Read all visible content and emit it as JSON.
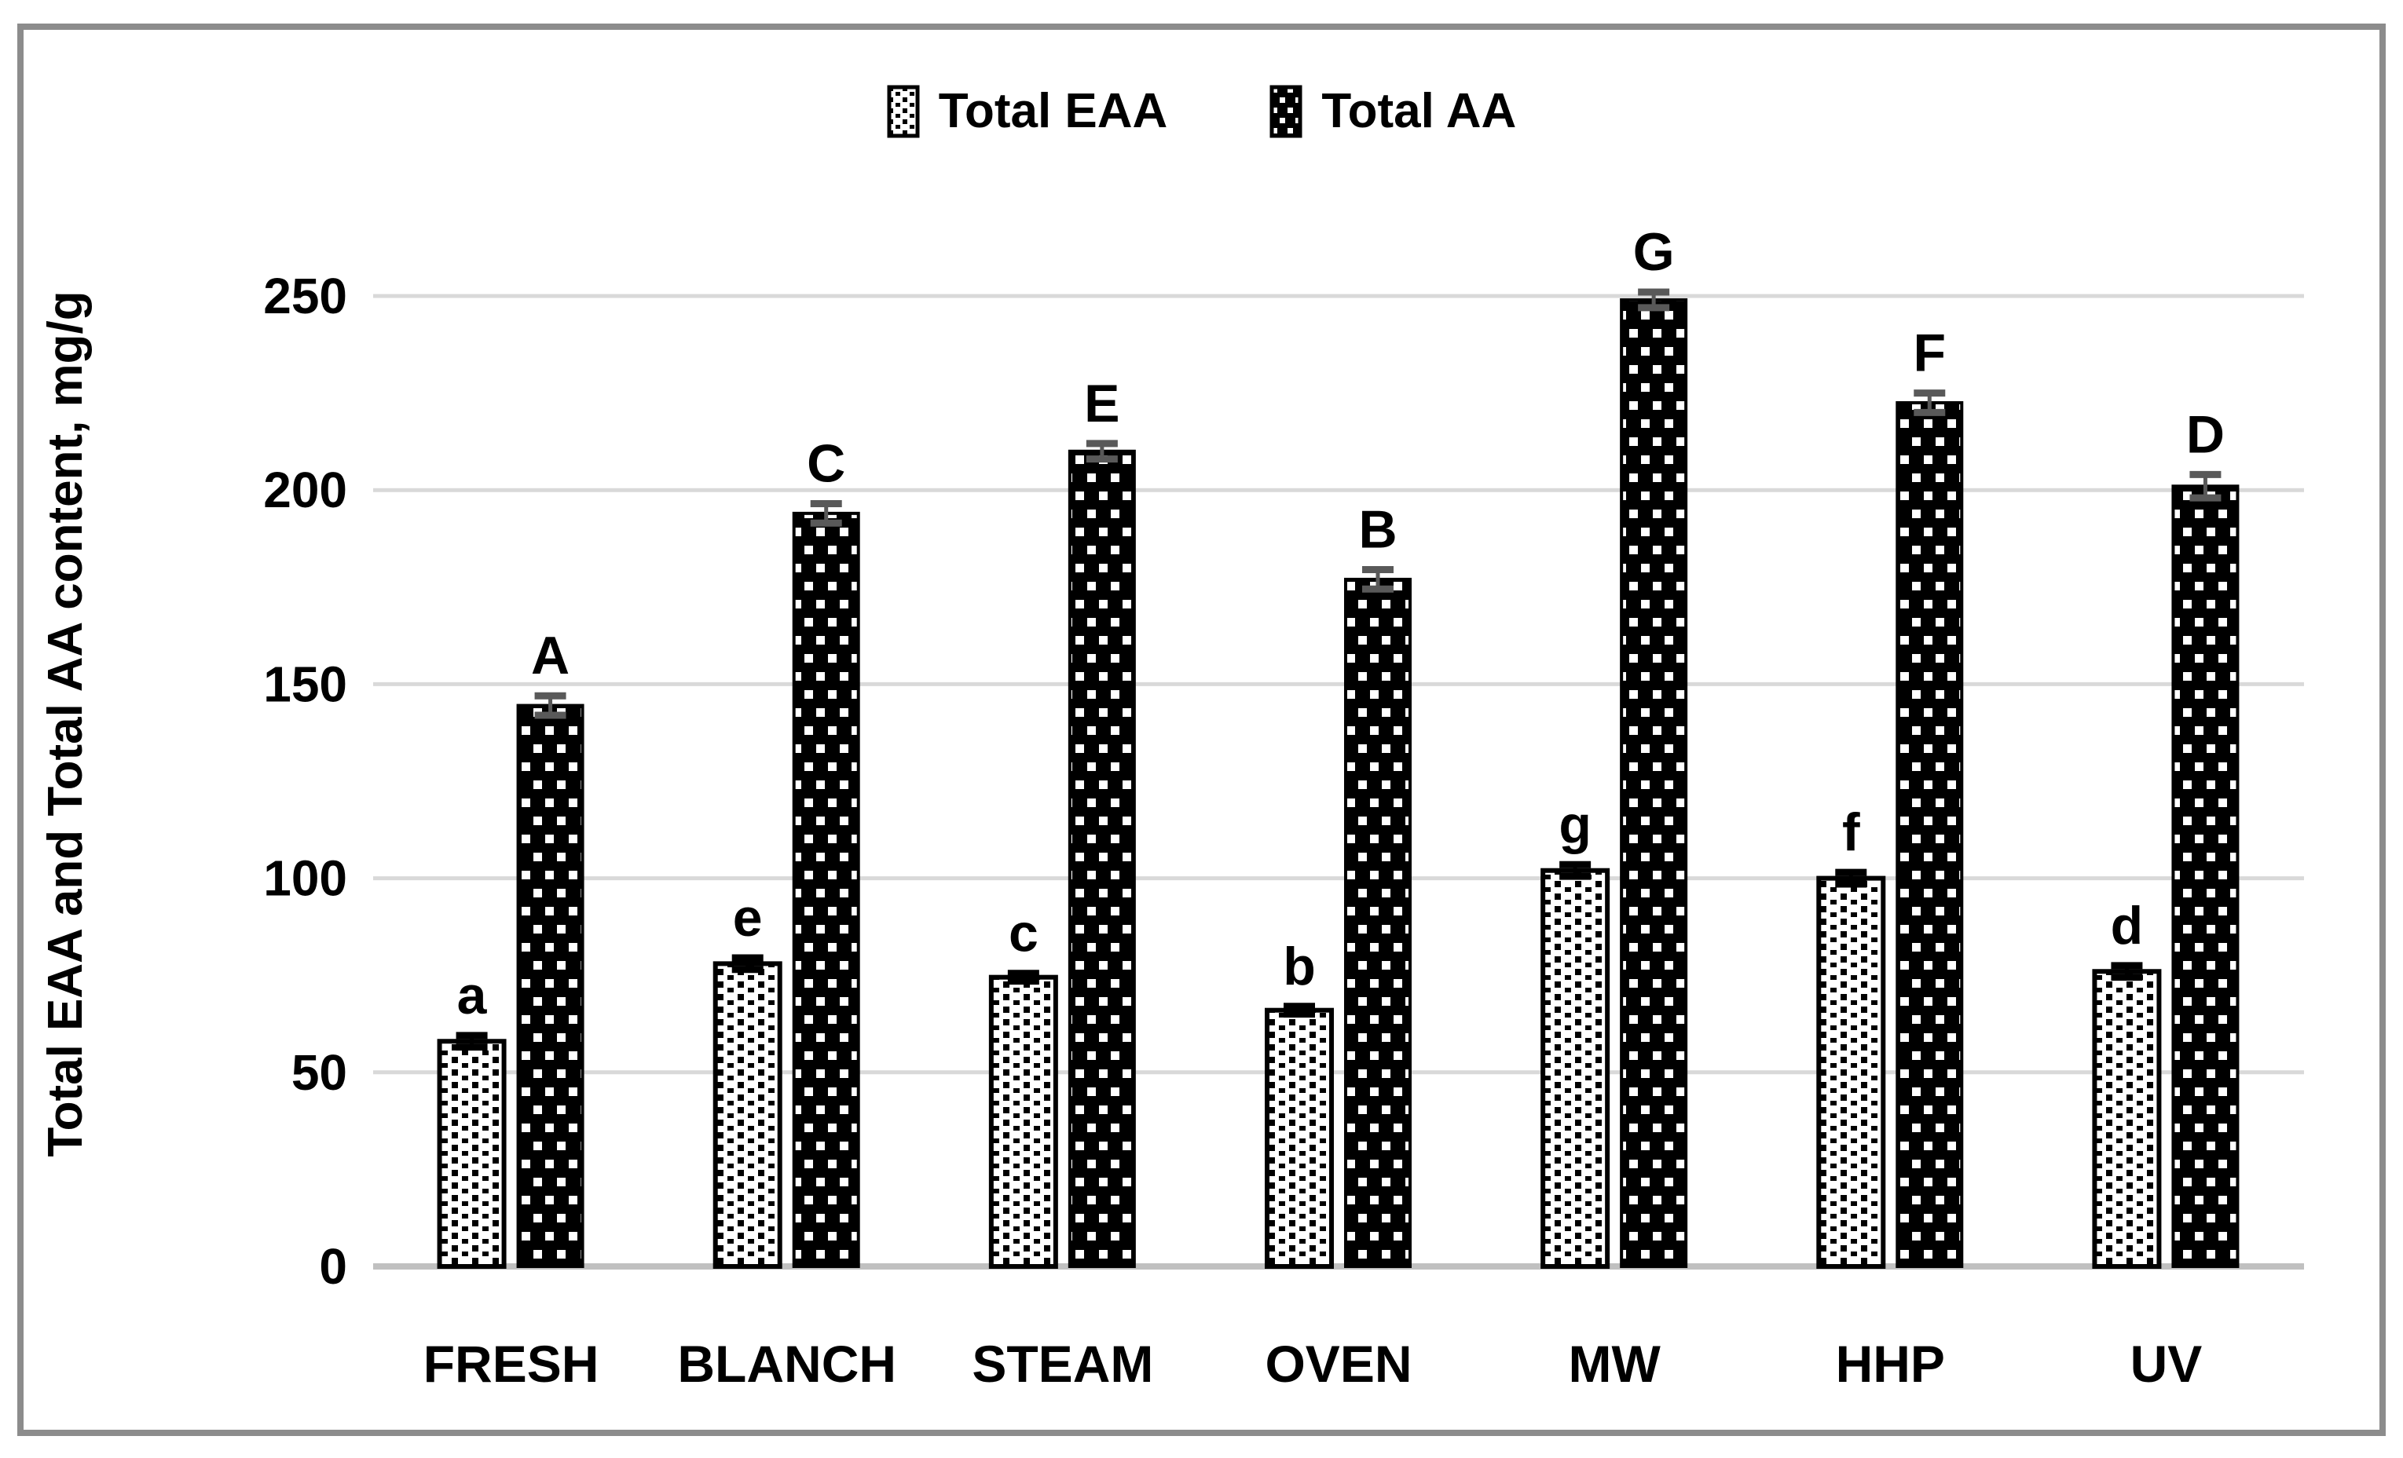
{
  "figure": {
    "frame_color": "#8c8c8c",
    "background": "#ffffff"
  },
  "legend": {
    "position": "top-center",
    "items": [
      {
        "label": "Total EAA",
        "swatch": "white-with-black-dots-pattern"
      },
      {
        "label": "Total AA",
        "swatch": "black-with-white-dots-pattern"
      }
    ]
  },
  "chart_data": {
    "type": "bar",
    "title": "",
    "categories": [
      "FRESH",
      "BLANCH",
      "STEAM",
      "OVEN",
      "MW",
      "HHP",
      "UV"
    ],
    "series": [
      {
        "name": "Total EAA",
        "values": [
          58,
          78,
          74.5,
          66,
          102,
          100,
          76
        ],
        "errors": [
          1.5,
          1.5,
          1,
          1,
          1.5,
          1.5,
          1.5
        ],
        "point_labels": [
          "a",
          "e",
          "c",
          "b",
          "g",
          "f",
          "d"
        ],
        "pattern": "small black squares on white",
        "error_color": "#000000"
      },
      {
        "name": "Total AA",
        "values": [
          144.5,
          194,
          210,
          177,
          249,
          222.5,
          201
        ],
        "errors": [
          2.5,
          2.5,
          2,
          2.5,
          2,
          2.5,
          3
        ],
        "point_labels": [
          "A",
          "C",
          "E",
          "B",
          "G",
          "F",
          "D"
        ],
        "pattern": "small white squares on black",
        "error_color": "#595959"
      }
    ],
    "xlabel": "",
    "ylabel": "Total EAA and Total AA content, mg/g",
    "ylim": [
      0,
      250
    ],
    "yticks": [
      0,
      50,
      100,
      150,
      200,
      250
    ],
    "grid": "horizontal",
    "legend_position": "top-center",
    "colors": {
      "gridline": "#d9d9d9",
      "baseline": "#c0c0c0",
      "text": "#000000",
      "bar_fill_eaa": "#ffffff",
      "bar_dots_eaa": "#000000",
      "bar_fill_aa": "#000000",
      "bar_dots_aa": "#ffffff"
    }
  }
}
